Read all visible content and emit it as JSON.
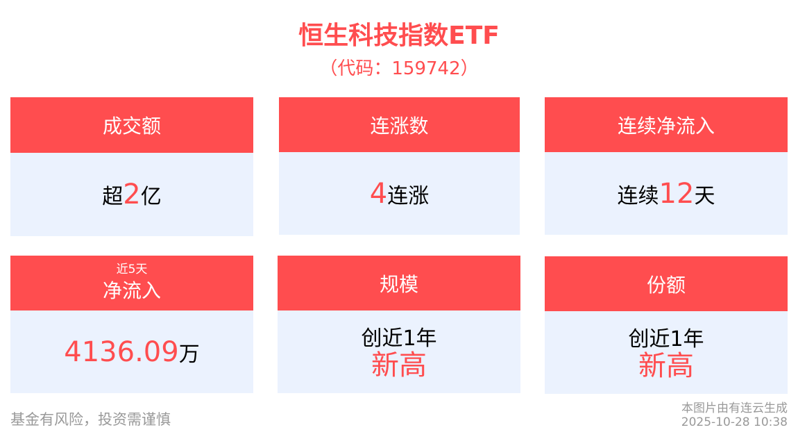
{
  "title": "恒生科技指数ETF",
  "subtitle": "（代码：159742）",
  "cards": [
    {
      "header": "成交额",
      "prefix": "超",
      "value": "2",
      "suffix": "亿"
    },
    {
      "header": "连涨数",
      "prefix": "",
      "value": "4",
      "suffix": "连涨"
    },
    {
      "header": "连续净流入",
      "prefix": "连续",
      "value": "12",
      "suffix": "天"
    },
    {
      "header_small": "近5天",
      "header": "净流入",
      "prefix": "",
      "value": "4136.09",
      "suffix": "万"
    },
    {
      "header": "规模",
      "line1": "创近1年",
      "line2": "新高"
    },
    {
      "header": "份额",
      "line1": "创近1年",
      "line2": "新高"
    }
  ],
  "footer": {
    "disclaimer": "基金有风险，投资需谨慎",
    "source": "本图片由有连云生成",
    "timestamp": "2025-10-28 10:38"
  },
  "colors": {
    "accent": "#ff4d4f",
    "card_bg": "#ebf2fe"
  }
}
